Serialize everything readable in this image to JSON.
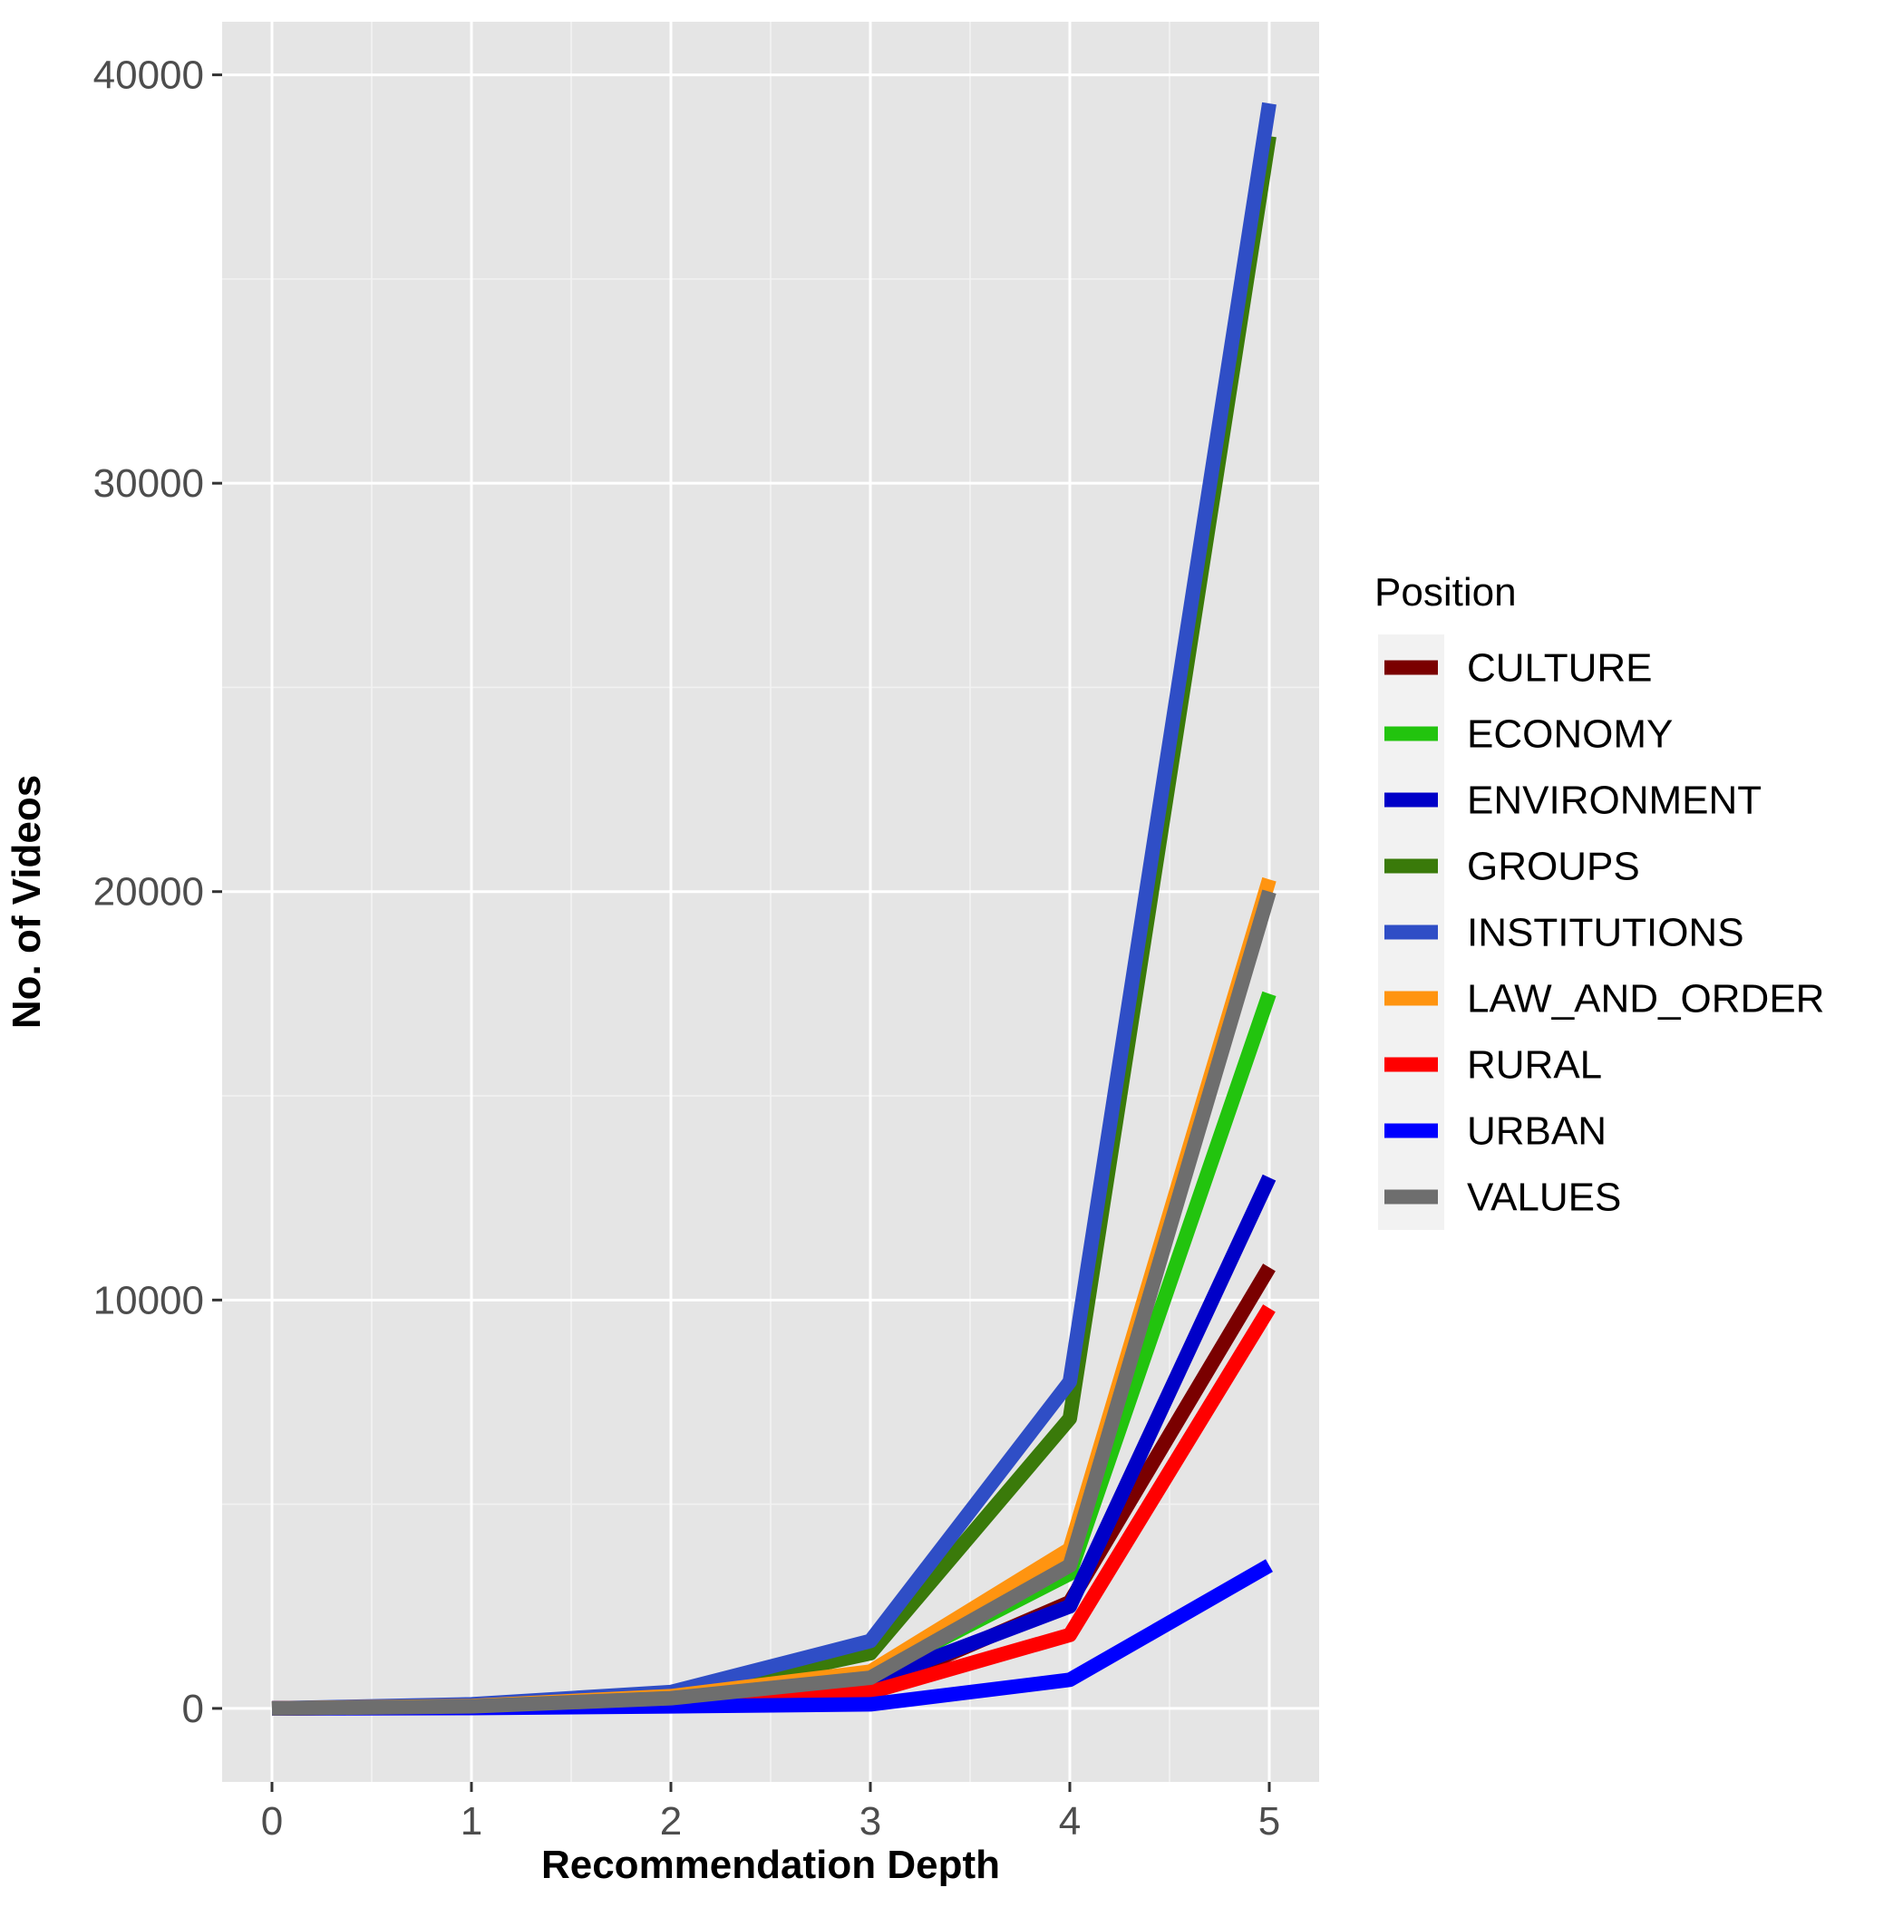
{
  "chart_data": {
    "type": "line",
    "xlabel": "Recommendation Depth",
    "ylabel": "No. of Videos",
    "x": [
      0,
      1,
      2,
      3,
      4,
      5
    ],
    "xlim": [
      -0.25,
      5.25
    ],
    "ylim": [
      -1800,
      41300
    ],
    "x_ticks": [
      "0",
      "1",
      "2",
      "3",
      "4",
      "5"
    ],
    "y_ticks": [
      "0",
      "10000",
      "20000",
      "30000",
      "40000"
    ],
    "y_tick_values": [
      0,
      10000,
      20000,
      30000,
      40000
    ],
    "grid": true,
    "legend": {
      "title": "Position",
      "position": "right"
    },
    "series": [
      {
        "name": "CULTURE",
        "color": "#7a0000",
        "values": [
          0,
          30,
          150,
          500,
          2600,
          10800
        ]
      },
      {
        "name": "ECONOMY",
        "color": "#22c40e",
        "values": [
          0,
          40,
          200,
          800,
          3300,
          17500
        ]
      },
      {
        "name": "ENVIRONMENT",
        "color": "#0000c8",
        "values": [
          0,
          40,
          150,
          650,
          2500,
          13000
        ]
      },
      {
        "name": "GROUPS",
        "color": "#3a7a0a",
        "values": [
          0,
          60,
          300,
          1350,
          7100,
          38500
        ]
      },
      {
        "name": "INSTITUTIONS",
        "color": "#2f4ec6",
        "values": [
          0,
          100,
          400,
          1650,
          8000,
          39300
        ]
      },
      {
        "name": "LAW_AND_ORDER",
        "color": "#ff9410",
        "values": [
          0,
          60,
          300,
          900,
          3900,
          20300
        ]
      },
      {
        "name": "RURAL",
        "color": "#ff0000",
        "values": [
          0,
          30,
          100,
          400,
          1800,
          9800
        ]
      },
      {
        "name": "URBAN",
        "color": "#0000ff",
        "values": [
          0,
          10,
          50,
          100,
          700,
          3500
        ]
      },
      {
        "name": "VALUES",
        "color": "#6e6e6e",
        "values": [
          0,
          50,
          250,
          750,
          3500,
          20000
        ]
      }
    ]
  }
}
